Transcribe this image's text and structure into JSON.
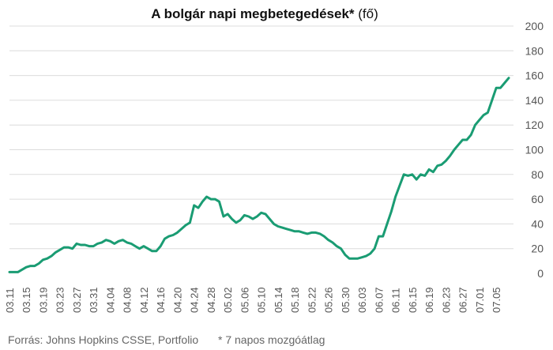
{
  "chart_data": {
    "type": "line",
    "title_bold": "A bolgár napi megbetegedések*",
    "title_rest": " (fő)",
    "ylim": [
      0,
      200
    ],
    "y_ticks": [
      0,
      20,
      40,
      60,
      80,
      100,
      120,
      140,
      160,
      180,
      200
    ],
    "y_axis_side": "right",
    "grid": true,
    "color": "#1a9c73",
    "x_tick_labels": [
      "03.11",
      "03.15",
      "03.19",
      "03.23",
      "03.27",
      "03.31",
      "04.04",
      "04.08",
      "04.12",
      "04.16",
      "04.20",
      "04.24",
      "04.28",
      "05.02",
      "05.06",
      "05.10",
      "05.14",
      "05.18",
      "05.22",
      "05.26",
      "05.30",
      "06.03",
      "06.07",
      "06.11",
      "06.15",
      "06.19",
      "06.23",
      "06.27",
      "07.01",
      "07.05"
    ],
    "series": [
      {
        "values": [
          1,
          1,
          1,
          3,
          5,
          6,
          6,
          8,
          11,
          12,
          14,
          17,
          19,
          21,
          21,
          20,
          24,
          23,
          23,
          22,
          22,
          24,
          25,
          27,
          26,
          24,
          26,
          27,
          25,
          24,
          22,
          20,
          22,
          20,
          18,
          18,
          22,
          28,
          30,
          31,
          33,
          36,
          39,
          41,
          55,
          53,
          58,
          62,
          60,
          60,
          58,
          46,
          48,
          44,
          41,
          43,
          47,
          46,
          44,
          46,
          49,
          48,
          44,
          40,
          38,
          37,
          36,
          35,
          34,
          34,
          33,
          32,
          33,
          33,
          32,
          30,
          27,
          25,
          22,
          20,
          15,
          12,
          12,
          12,
          13,
          14,
          16,
          20,
          30,
          30,
          40,
          50,
          62,
          71,
          80,
          79,
          80,
          76,
          80,
          79,
          84,
          82,
          87,
          88,
          91,
          95,
          100,
          104,
          108,
          108,
          112,
          120,
          124,
          128,
          130,
          140,
          150,
          150,
          154,
          158
        ]
      }
    ]
  },
  "footer": {
    "source": "Forrás: Johns Hopkins CSSE, Portfolio",
    "note": "* 7 napos mozgóátlag"
  }
}
